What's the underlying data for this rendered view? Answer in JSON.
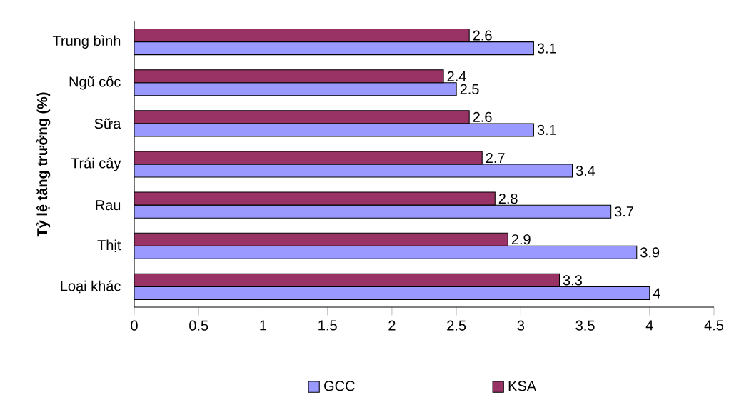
{
  "chart_data": {
    "type": "bar",
    "orientation": "horizontal",
    "ylabel": "Tỷ lệ tăng trưởng (%)",
    "categories": [
      "Trung bình",
      "Ngũ cốc",
      "Sữa",
      "Trái cây",
      "Rau",
      "Thịt",
      "Loại khác"
    ],
    "series": [
      {
        "name": "GCC",
        "color": "#9999ff",
        "values": [
          3.1,
          2.5,
          3.1,
          3.4,
          3.7,
          3.9,
          4
        ]
      },
      {
        "name": "KSA",
        "color": "#993366",
        "values": [
          2.6,
          2.4,
          2.6,
          2.7,
          2.8,
          2.9,
          3.3
        ]
      }
    ],
    "xlim": [
      0,
      4.5
    ],
    "xticks": [
      0,
      0.5,
      1,
      1.5,
      2,
      2.5,
      3,
      3.5,
      4,
      4.5
    ],
    "data_labels": true,
    "grid": false,
    "legend": "bottom"
  }
}
